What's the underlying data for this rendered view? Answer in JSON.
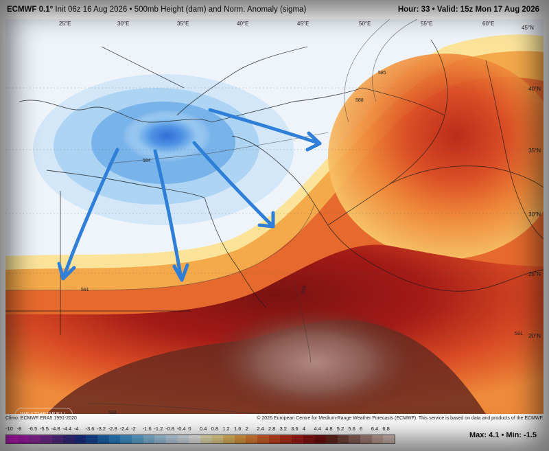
{
  "header": {
    "model": "ECMWF 0.1°",
    "init": "Init 06z 16 Aug 2026",
    "bullet": "•",
    "field": "500mb Height (dam) and Norm. Anomaly (sigma)",
    "hour_valid": "Hour: 33 • Valid: 15z Mon 17 Aug 2026"
  },
  "map": {
    "lon_labels": [
      "25°E",
      "30°E",
      "35°E",
      "40°E",
      "45°E",
      "50°E",
      "55°E",
      "60°E",
      "45°N"
    ],
    "lat_labels": [
      "40°N",
      "35°N",
      "30°N",
      "25°N",
      "20°N"
    ],
    "contour_labels": [
      "585",
      "588",
      "584",
      "591",
      "594",
      "591",
      "593"
    ],
    "logo": "WEATHERBELL",
    "arrow_color": "#2f7fd8"
  },
  "footer": {
    "climo": "Climo: ECMWF ERA5 1991-2020",
    "credit": "© 2026 European Centre for Medium-Range Weather Forecasts (ECMWF). This service is based on data and products of the ECMWF.",
    "max_min": "Max: 4.1 • Min: -1.5"
  },
  "scale": {
    "labels": [
      "-10",
      "-8",
      "-6.5",
      "-5.5",
      "-4.8",
      "-4.4",
      "-4",
      "-3.6",
      "-3.2",
      "-2.8",
      "-2.4",
      "-2",
      "-1.6",
      "-1.2",
      "-0.8",
      "-0.4",
      "0",
      "0.4",
      "0.8",
      "1.2",
      "1.6",
      "2",
      "2.4",
      "2.8",
      "3.2",
      "3.6",
      "4",
      "4.4",
      "4.8",
      "5.2",
      "5.6",
      "6",
      "6.4",
      "6.8"
    ],
    "colors": [
      "#d81fd8",
      "#b81fc0",
      "#9a2aa8",
      "#7e2f9a",
      "#5b2f8e",
      "#3a2f87",
      "#1f3494",
      "#1b4fa8",
      "#1f6fc0",
      "#2a8ad6",
      "#48a3e2",
      "#6bb7ea",
      "#8fc9f0",
      "#b0d9f4",
      "#cfe6f8",
      "#e6f1fb",
      "#ffffff",
      "#fdf4c2",
      "#fbe49a",
      "#f8c96a",
      "#f4a94a",
      "#ef8a3a",
      "#e66a2e",
      "#d94a24",
      "#c8321e",
      "#b0201a",
      "#961616",
      "#7a1212",
      "#6a2a20",
      "#7b4a40",
      "#94685e",
      "#b08880",
      "#c9a8a0",
      "#d8c0b8"
    ]
  }
}
